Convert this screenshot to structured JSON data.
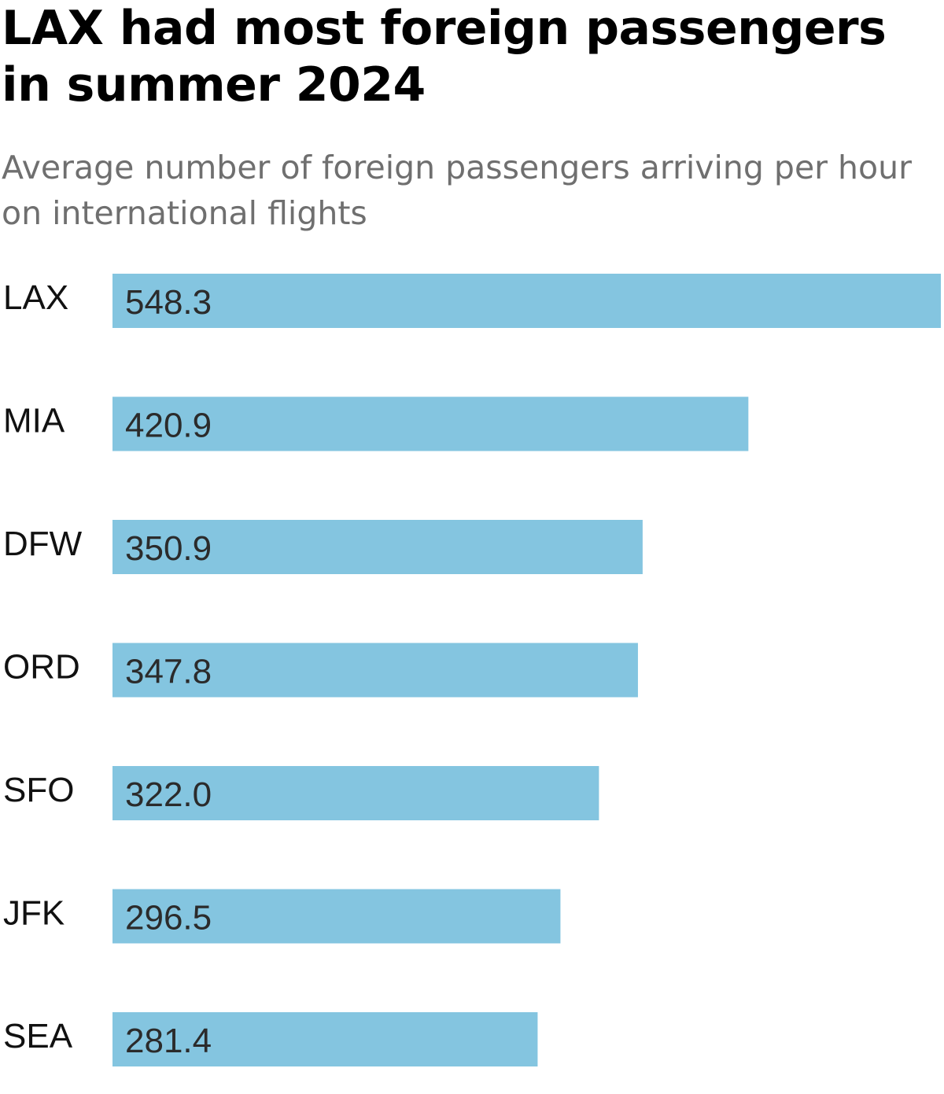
{
  "chart_data": {
    "type": "bar",
    "orientation": "horizontal",
    "title": "LAX had most foreign passengers in summer 2024",
    "subtitle": "Average number of foreign passengers arriving per hour on international flights",
    "categories": [
      "LAX",
      "MIA",
      "DFW",
      "ORD",
      "SFO",
      "JFK",
      "SEA"
    ],
    "values": [
      548.3,
      420.9,
      350.9,
      347.8,
      322.0,
      296.5,
      281.4
    ],
    "value_labels": [
      "548.3",
      "420.9",
      "350.9",
      "347.8",
      "322.0",
      "296.5",
      "281.4"
    ],
    "xlim": [
      0,
      548.3
    ],
    "grid": false,
    "bar_color": "#84c5e0"
  }
}
